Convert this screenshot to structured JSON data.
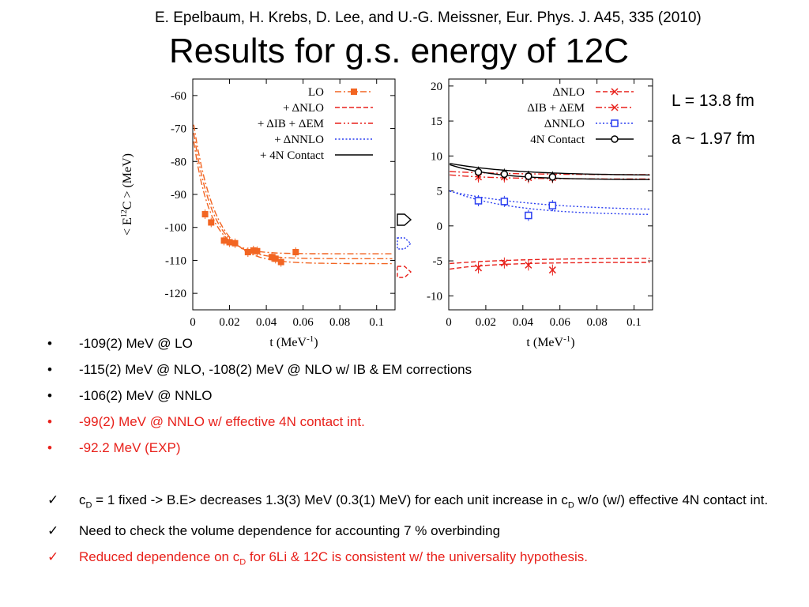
{
  "header": {
    "citation": "E. Epelbaum, H. Krebs, D. Lee, and U.-G. Meissner, Eur. Phys. J. A45, 335 (2010)",
    "title": "Results for g.s. energy of 12C"
  },
  "params": {
    "L": "L = 13.8 fm",
    "a": "a ~ 1.97 fm"
  },
  "bullets": [
    {
      "text": "-109(2) MeV @ LO",
      "color": "#000000"
    },
    {
      "text": "-115(2) MeV @ NLO, -108(2) MeV @ NLO w/ IB & EM corrections",
      "color": "#000000"
    },
    {
      "text": "-106(2) MeV @ NNLO",
      "color": "#000000"
    },
    {
      "text": "-99(2) MeV @ NNLO w/ effective 4N contact int.",
      "color": "#e8211b"
    },
    {
      "text": "-92.2 MeV (EXP)",
      "color": "#e8211b"
    }
  ],
  "checks": [
    {
      "pre": "c",
      "sub": "D",
      "mid": " = 1 fixed -> B.E> decreases 1.3(3) MeV (0.3(1) MeV) for each unit increase in c",
      "sub2": "D",
      "post": " w/o (w/) effective 4N contact int.",
      "color": "#000000"
    },
    {
      "text": "Need to check the volume dependence for accounting 7 % overbinding",
      "color": "#000000"
    },
    {
      "pre": "Reduced dependence on c",
      "sub": "D",
      "post": " for 6Li & 12C is consistent w/ the universality hypothesis.",
      "color": "#e8211b"
    }
  ],
  "icons": {
    "bullet": "•",
    "check": "✓"
  },
  "chart_data": [
    {
      "type": "line",
      "ylabel": "< E12C > (MeV)",
      "xlabel": "t (MeV-1)",
      "xlim": [
        0,
        0.11
      ],
      "ylim": [
        -125,
        -55
      ],
      "xticks": [
        "0",
        "0.02",
        "0.04",
        "0.06",
        "0.08",
        "0.1"
      ],
      "yticks": [
        "-60",
        "-70",
        "-80",
        "-90",
        "-100",
        "-110",
        "-120"
      ],
      "legend_position": "top-right",
      "series": [
        {
          "name": "LO",
          "color": "#f26522",
          "style": "dashdot",
          "points": [
            [
              0.0067,
              -96
            ],
            [
              0.01,
              -98.5
            ],
            [
              0.017,
              -104
            ],
            [
              0.02,
              -104.5
            ],
            [
              0.023,
              -104.8
            ],
            [
              0.03,
              -107.5
            ],
            [
              0.033,
              -107
            ],
            [
              0.035,
              -107.2
            ],
            [
              0.043,
              -109
            ],
            [
              0.045,
              -109.5
            ],
            [
              0.048,
              -110.5
            ],
            [
              0.056,
              -107.5
            ]
          ]
        },
        {
          "name": "+ ΔNLO",
          "color": "#e8211b",
          "style": "dashed"
        },
        {
          "name": "+ ΔIB + ΔEM",
          "color": "#e8211b",
          "style": "dashdotdot"
        },
        {
          "name": "+ ΔNNLO",
          "color": "#2b3ff0",
          "style": "dotted"
        },
        {
          "name": "+ 4N Contact",
          "color": "#000000",
          "style": "solid"
        }
      ],
      "extrapolations": [
        -109,
        -115,
        -108,
        -106,
        -99
      ]
    },
    {
      "type": "line",
      "xlabel": "t (MeV-1)",
      "xlim": [
        0,
        0.11
      ],
      "ylim": [
        -12,
        21
      ],
      "xticks": [
        "0",
        "0.02",
        "0.04",
        "0.06",
        "0.08",
        "0.1"
      ],
      "yticks": [
        "20",
        "15",
        "10",
        "5",
        "0",
        "-5",
        "-10"
      ],
      "legend_position": "top-right",
      "series": [
        {
          "name": "ΔNLO",
          "color": "#e8211b",
          "style": "dashed",
          "points": [
            [
              0.016,
              -6
            ],
            [
              0.03,
              -5.3
            ],
            [
              0.043,
              -5.6
            ],
            [
              0.056,
              -6.3
            ]
          ]
        },
        {
          "name": "ΔIB + ΔEM",
          "color": "#e8211b",
          "style": "dashdot",
          "points": [
            [
              0.016,
              7.0
            ],
            [
              0.03,
              7.0
            ],
            [
              0.043,
              6.9
            ],
            [
              0.056,
              6.9
            ]
          ]
        },
        {
          "name": "ΔNNLO",
          "color": "#2b3ff0",
          "style": "dotted",
          "points": [
            [
              0.016,
              3.6
            ],
            [
              0.03,
              3.5
            ],
            [
              0.043,
              1.5
            ],
            [
              0.056,
              2.9
            ]
          ]
        },
        {
          "name": "4N Contact",
          "color": "#000000",
          "style": "solid",
          "points": [
            [
              0.016,
              7.7
            ],
            [
              0.03,
              7.4
            ],
            [
              0.043,
              7.1
            ],
            [
              0.056,
              7.0
            ]
          ]
        }
      ]
    }
  ]
}
